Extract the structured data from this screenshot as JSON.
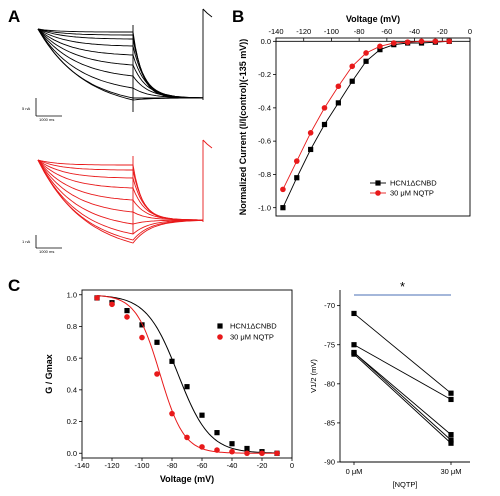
{
  "panels": {
    "a": {
      "letter": "A",
      "black_scale_y": "5 nA",
      "black_scale_x": "1000 ms",
      "red_scale_y": "1 nA",
      "red_scale_x": "1000 ms"
    },
    "b": {
      "letter": "B"
    },
    "c": {
      "letter": "C"
    }
  },
  "colors": {
    "hcn": "#000000",
    "nqtp": "#e8191a",
    "sig_line": "#4a6fb5"
  },
  "chart_data": [
    {
      "id": "B",
      "type": "line",
      "xlabel": "Voltage (mV)",
      "ylabel": "Normalized Current (I/I(control)(-135 mV))",
      "xlim": [
        -140,
        0
      ],
      "ylim": [
        -1.05,
        0.02
      ],
      "x_ticks": [
        "-140",
        "-120",
        "-100",
        "-80",
        "-60",
        "-40",
        "-20",
        "0"
      ],
      "y_ticks": [
        "-1.0",
        "-0.8",
        "-0.6",
        "-0.4",
        "-0.2",
        "0.0"
      ],
      "legend_position": "right",
      "x_axis_position": "top",
      "series": [
        {
          "name": "HCN1ΔCNBD",
          "marker": "square",
          "x": [
            -135,
            -125,
            -115,
            -105,
            -95,
            -85,
            -75,
            -65,
            -55,
            -45,
            -35,
            -25,
            -15
          ],
          "y": [
            -1.0,
            -0.82,
            -0.65,
            -0.5,
            -0.37,
            -0.24,
            -0.12,
            -0.05,
            -0.02,
            -0.01,
            -0.01,
            -0.005,
            0.0
          ]
        },
        {
          "name": "30 μM NQTP",
          "marker": "circle",
          "x": [
            -135,
            -125,
            -115,
            -105,
            -95,
            -85,
            -75,
            -65,
            -55,
            -45,
            -35,
            -25,
            -15
          ],
          "y": [
            -0.89,
            -0.72,
            -0.55,
            -0.4,
            -0.27,
            -0.15,
            -0.07,
            -0.03,
            -0.01,
            -0.005,
            0.0,
            0.0,
            0.0
          ]
        }
      ]
    },
    {
      "id": "C-left",
      "type": "scatter",
      "xlabel": "Voltage (mV)",
      "ylabel": "G / Gmax",
      "xlim": [
        -140,
        0
      ],
      "ylim": [
        -0.03,
        1.03
      ],
      "x_ticks": [
        "-140",
        "-120",
        "-100",
        "-80",
        "-60",
        "-40",
        "-20",
        "0"
      ],
      "y_ticks": [
        "0.0",
        "0.2",
        "0.4",
        "0.6",
        "0.8",
        "1.0"
      ],
      "legend_position": "top-right",
      "series": [
        {
          "name": "HCN1ΔCNBD",
          "marker": "square",
          "x": [
            -130,
            -120,
            -110,
            -100,
            -90,
            -80,
            -70,
            -60,
            -50,
            -40,
            -30,
            -20,
            -10
          ],
          "y": [
            0.98,
            0.95,
            0.9,
            0.81,
            0.7,
            0.58,
            0.42,
            0.24,
            0.13,
            0.06,
            0.03,
            0.01,
            0.0
          ],
          "fit": {
            "v_half": -76,
            "slope": 10.5
          }
        },
        {
          "name": "30 μM NQTP",
          "marker": "circle",
          "x": [
            -130,
            -120,
            -110,
            -100,
            -90,
            -80,
            -70,
            -60,
            -50,
            -40,
            -30,
            -20,
            -10
          ],
          "y": [
            0.98,
            0.94,
            0.86,
            0.73,
            0.5,
            0.25,
            0.1,
            0.04,
            0.02,
            0.01,
            0.0,
            0.0,
            0.0
          ],
          "fit": {
            "v_half": -88,
            "slope": 8
          }
        }
      ]
    },
    {
      "id": "C-right",
      "type": "line",
      "xlabel": "[NQTP]",
      "ylabel": "V1/2 (mV)",
      "categories": [
        "0 μM",
        "30 μM"
      ],
      "ylim": [
        -90,
        -68
      ],
      "y_ticks": [
        "-90",
        "-85",
        "-80",
        "-75",
        "-70"
      ],
      "significance": "*",
      "pairs": [
        [
          -71,
          -81.2
        ],
        [
          -75,
          -82
        ],
        [
          -76,
          -86.5
        ],
        [
          -76,
          -87.2
        ],
        [
          -76.2,
          -87.6
        ]
      ]
    }
  ]
}
